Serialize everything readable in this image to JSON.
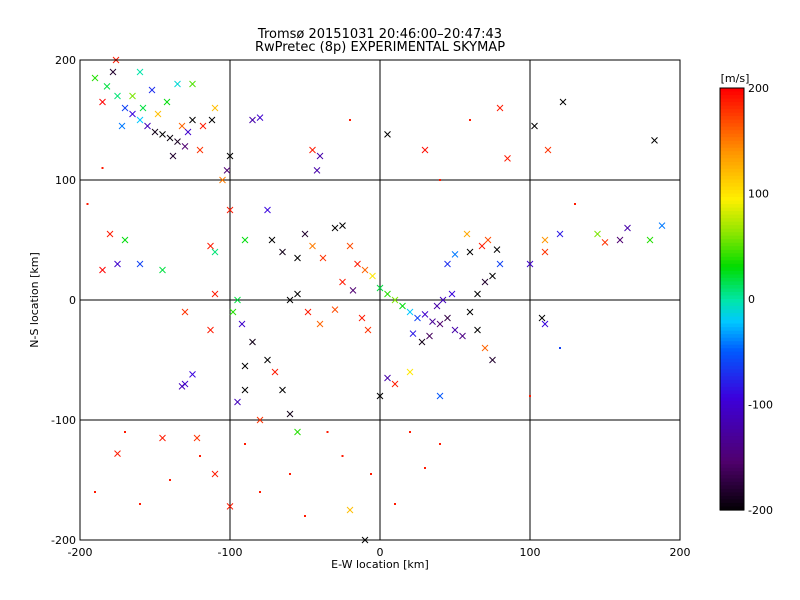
{
  "chart_data": {
    "type": "scatter",
    "title": "Tromsø 20151031 20:46:00–20:47:43",
    "subtitle": "RwPretec (8p) EXPERIMENTAL SKYMAP",
    "xlabel": "E-W location [km]",
    "ylabel": "N-S location [km]",
    "xlim": [
      -200,
      200
    ],
    "ylim": [
      -200,
      200
    ],
    "xticks": [
      "-200",
      "-100",
      "0",
      "100",
      "200"
    ],
    "yticks": [
      "-200",
      "-100",
      "0",
      "100",
      "200"
    ],
    "grid": true,
    "colorbar": {
      "label": "[m/s]",
      "range": [
        -200,
        200
      ],
      "ticks": [
        "200",
        "100",
        "0",
        "-100",
        "-200"
      ]
    },
    "points": [
      {
        "x": -190,
        "y": 185,
        "v": 40,
        "m": "x"
      },
      {
        "x": -182,
        "y": 178,
        "v": 20,
        "m": "x"
      },
      {
        "x": -178,
        "y": 190,
        "v": -180,
        "m": "x"
      },
      {
        "x": -175,
        "y": 170,
        "v": 10,
        "m": "x"
      },
      {
        "x": -170,
        "y": 160,
        "v": -60,
        "m": "x"
      },
      {
        "x": -165,
        "y": 155,
        "v": -90,
        "m": "x"
      },
      {
        "x": -160,
        "y": 150,
        "v": -20,
        "m": "x"
      },
      {
        "x": -155,
        "y": 145,
        "v": -110,
        "m": "x"
      },
      {
        "x": -150,
        "y": 140,
        "v": -190,
        "m": "x"
      },
      {
        "x": -145,
        "y": 138,
        "v": -200,
        "m": "x"
      },
      {
        "x": -140,
        "y": 135,
        "v": -195,
        "m": "x"
      },
      {
        "x": -135,
        "y": 132,
        "v": -185,
        "m": "x"
      },
      {
        "x": -130,
        "y": 128,
        "v": -150,
        "m": "x"
      },
      {
        "x": -128,
        "y": 140,
        "v": -100,
        "m": "x"
      },
      {
        "x": -125,
        "y": 150,
        "v": -200,
        "m": "x"
      },
      {
        "x": -120,
        "y": 125,
        "v": 180,
        "m": "x"
      },
      {
        "x": -118,
        "y": 145,
        "v": 190,
        "m": "x"
      },
      {
        "x": -112,
        "y": 150,
        "v": -200,
        "m": "x"
      },
      {
        "x": -165,
        "y": 170,
        "v": 60,
        "m": "x"
      },
      {
        "x": -172,
        "y": 145,
        "v": -40,
        "m": "x"
      },
      {
        "x": -158,
        "y": 160,
        "v": 20,
        "m": "x"
      },
      {
        "x": -148,
        "y": 155,
        "v": 120,
        "m": "x"
      },
      {
        "x": -138,
        "y": 120,
        "v": -180,
        "m": "x"
      },
      {
        "x": -132,
        "y": 145,
        "v": 160,
        "m": "x"
      },
      {
        "x": -185,
        "y": 165,
        "v": 200,
        "m": "x"
      },
      {
        "x": -176,
        "y": 200,
        "v": 190,
        "m": "x"
      },
      {
        "x": -160,
        "y": 190,
        "v": 0,
        "m": "x"
      },
      {
        "x": -152,
        "y": 175,
        "v": -70,
        "m": "x"
      },
      {
        "x": -142,
        "y": 165,
        "v": 30,
        "m": "x"
      },
      {
        "x": -135,
        "y": 180,
        "v": -10,
        "m": "x"
      },
      {
        "x": -125,
        "y": 180,
        "v": 50,
        "m": "x"
      },
      {
        "x": -110,
        "y": 160,
        "v": 120,
        "m": "x"
      },
      {
        "x": -100,
        "y": 120,
        "v": -200,
        "m": "x"
      },
      {
        "x": -102,
        "y": 108,
        "v": -150,
        "m": "x"
      },
      {
        "x": -85,
        "y": 150,
        "v": -120,
        "m": "x"
      },
      {
        "x": -80,
        "y": 152,
        "v": -100,
        "m": "x"
      },
      {
        "x": -105,
        "y": 100,
        "v": 150,
        "m": "x"
      },
      {
        "x": 5,
        "y": 138,
        "v": -200,
        "m": "x"
      },
      {
        "x": 80,
        "y": 160,
        "v": 190,
        "m": "x"
      },
      {
        "x": 103,
        "y": 145,
        "v": -200,
        "m": "x"
      },
      {
        "x": 122,
        "y": 165,
        "v": -200,
        "m": "x"
      },
      {
        "x": 112,
        "y": 125,
        "v": 180,
        "m": "x"
      },
      {
        "x": 183,
        "y": 133,
        "v": -200,
        "m": "x"
      },
      {
        "x": 30,
        "y": 125,
        "v": 195,
        "m": "x"
      },
      {
        "x": 85,
        "y": 118,
        "v": 190,
        "m": "x"
      },
      {
        "x": -45,
        "y": 125,
        "v": 190,
        "m": "x"
      },
      {
        "x": -40,
        "y": 120,
        "v": -120,
        "m": "x"
      },
      {
        "x": -42,
        "y": 108,
        "v": -120,
        "m": "x"
      },
      {
        "x": -100,
        "y": 75,
        "v": 190,
        "m": "x"
      },
      {
        "x": -90,
        "y": 50,
        "v": 30,
        "m": "x"
      },
      {
        "x": -75,
        "y": 75,
        "v": -90,
        "m": "x"
      },
      {
        "x": -72,
        "y": 50,
        "v": -200,
        "m": "x"
      },
      {
        "x": -65,
        "y": 40,
        "v": -190,
        "m": "x"
      },
      {
        "x": -55,
        "y": 35,
        "v": -200,
        "m": "x"
      },
      {
        "x": -50,
        "y": 55,
        "v": -180,
        "m": "x"
      },
      {
        "x": -45,
        "y": 45,
        "v": 150,
        "m": "x"
      },
      {
        "x": -38,
        "y": 35,
        "v": 180,
        "m": "x"
      },
      {
        "x": -30,
        "y": 60,
        "v": -200,
        "m": "x"
      },
      {
        "x": -25,
        "y": 62,
        "v": -200,
        "m": "x"
      },
      {
        "x": -20,
        "y": 45,
        "v": 170,
        "m": "x"
      },
      {
        "x": -15,
        "y": 30,
        "v": 190,
        "m": "x"
      },
      {
        "x": -10,
        "y": 25,
        "v": 160,
        "m": "x"
      },
      {
        "x": -5,
        "y": 20,
        "v": 100,
        "m": "x"
      },
      {
        "x": -55,
        "y": 5,
        "v": -200,
        "m": "x"
      },
      {
        "x": -60,
        "y": 0,
        "v": -200,
        "m": "x"
      },
      {
        "x": -48,
        "y": -10,
        "v": 190,
        "m": "x"
      },
      {
        "x": -40,
        "y": -20,
        "v": 160,
        "m": "x"
      },
      {
        "x": -30,
        "y": -8,
        "v": 170,
        "m": "x"
      },
      {
        "x": -25,
        "y": 15,
        "v": 190,
        "m": "x"
      },
      {
        "x": -18,
        "y": 8,
        "v": -150,
        "m": "x"
      },
      {
        "x": -12,
        "y": -15,
        "v": 190,
        "m": "x"
      },
      {
        "x": -8,
        "y": -25,
        "v": 180,
        "m": "x"
      },
      {
        "x": 0,
        "y": 10,
        "v": 20,
        "m": "x"
      },
      {
        "x": 5,
        "y": 5,
        "v": 40,
        "m": "x"
      },
      {
        "x": 10,
        "y": 0,
        "v": 60,
        "m": "x"
      },
      {
        "x": 15,
        "y": -5,
        "v": 30,
        "m": "x"
      },
      {
        "x": 20,
        "y": -10,
        "v": -20,
        "m": "x"
      },
      {
        "x": 25,
        "y": -15,
        "v": -60,
        "m": "x"
      },
      {
        "x": 30,
        "y": -12,
        "v": -100,
        "m": "x"
      },
      {
        "x": 35,
        "y": -18,
        "v": -130,
        "m": "x"
      },
      {
        "x": 40,
        "y": -20,
        "v": -150,
        "m": "x"
      },
      {
        "x": 45,
        "y": -15,
        "v": -170,
        "m": "x"
      },
      {
        "x": 50,
        "y": -25,
        "v": -120,
        "m": "x"
      },
      {
        "x": 55,
        "y": -30,
        "v": -140,
        "m": "x"
      },
      {
        "x": 42,
        "y": 0,
        "v": -110,
        "m": "x"
      },
      {
        "x": 48,
        "y": 5,
        "v": -90,
        "m": "x"
      },
      {
        "x": 38,
        "y": -5,
        "v": -120,
        "m": "x"
      },
      {
        "x": 33,
        "y": -30,
        "v": -160,
        "m": "x"
      },
      {
        "x": 28,
        "y": -35,
        "v": -190,
        "m": "x"
      },
      {
        "x": 22,
        "y": -28,
        "v": -80,
        "m": "x"
      },
      {
        "x": 60,
        "y": -10,
        "v": -200,
        "m": "x"
      },
      {
        "x": 65,
        "y": 5,
        "v": -200,
        "m": "x"
      },
      {
        "x": 70,
        "y": 15,
        "v": -180,
        "m": "x"
      },
      {
        "x": 75,
        "y": 20,
        "v": -200,
        "m": "x"
      },
      {
        "x": 80,
        "y": 30,
        "v": -60,
        "m": "x"
      },
      {
        "x": 60,
        "y": 40,
        "v": -200,
        "m": "x"
      },
      {
        "x": 68,
        "y": 45,
        "v": 190,
        "m": "x"
      },
      {
        "x": 72,
        "y": 50,
        "v": 170,
        "m": "x"
      },
      {
        "x": 78,
        "y": 42,
        "v": -200,
        "m": "x"
      },
      {
        "x": 58,
        "y": 55,
        "v": 130,
        "m": "x"
      },
      {
        "x": 50,
        "y": 38,
        "v": -40,
        "m": "x"
      },
      {
        "x": 45,
        "y": 30,
        "v": -70,
        "m": "x"
      },
      {
        "x": 100,
        "y": 30,
        "v": -100,
        "m": "x"
      },
      {
        "x": 108,
        "y": -15,
        "v": -200,
        "m": "x"
      },
      {
        "x": 110,
        "y": -20,
        "v": -90,
        "m": "x"
      },
      {
        "x": 65,
        "y": -25,
        "v": -200,
        "m": "x"
      },
      {
        "x": 70,
        "y": -40,
        "v": 160,
        "m": "x"
      },
      {
        "x": 75,
        "y": -50,
        "v": -180,
        "m": "x"
      },
      {
        "x": -85,
        "y": -35,
        "v": -190,
        "m": "x"
      },
      {
        "x": -75,
        "y": -50,
        "v": -200,
        "m": "x"
      },
      {
        "x": -70,
        "y": -60,
        "v": 190,
        "m": "x"
      },
      {
        "x": -65,
        "y": -75,
        "v": -200,
        "m": "x"
      },
      {
        "x": -60,
        "y": -95,
        "v": -190,
        "m": "x"
      },
      {
        "x": -55,
        "y": -110,
        "v": 40,
        "m": "x"
      },
      {
        "x": -90,
        "y": -75,
        "v": -200,
        "m": "x"
      },
      {
        "x": -90,
        "y": -55,
        "v": -200,
        "m": "x"
      },
      {
        "x": -95,
        "y": -85,
        "v": -110,
        "m": "x"
      },
      {
        "x": -130,
        "y": -70,
        "v": -100,
        "m": "x"
      },
      {
        "x": -132,
        "y": -72,
        "v": -110,
        "m": "x"
      },
      {
        "x": -125,
        "y": -62,
        "v": -90,
        "m": "x"
      },
      {
        "x": -145,
        "y": -115,
        "v": 190,
        "m": "x"
      },
      {
        "x": -110,
        "y": -145,
        "v": 190,
        "m": "x"
      },
      {
        "x": -100,
        "y": -172,
        "v": 190,
        "m": "x"
      },
      {
        "x": -175,
        "y": -128,
        "v": 190,
        "m": "x"
      },
      {
        "x": -122,
        "y": -115,
        "v": 180,
        "m": "x"
      },
      {
        "x": -80,
        "y": -100,
        "v": 180,
        "m": "x"
      },
      {
        "x": 0,
        "y": -80,
        "v": -200,
        "m": "x"
      },
      {
        "x": 5,
        "y": -65,
        "v": -120,
        "m": "x"
      },
      {
        "x": 10,
        "y": -70,
        "v": 190,
        "m": "x"
      },
      {
        "x": 20,
        "y": -60,
        "v": 100,
        "m": "x"
      },
      {
        "x": 40,
        "y": -80,
        "v": -50,
        "m": "x"
      },
      {
        "x": -20,
        "y": -175,
        "v": 120,
        "m": "x"
      },
      {
        "x": -10,
        "y": -200,
        "v": -200,
        "m": "x"
      },
      {
        "x": -180,
        "y": 55,
        "v": 190,
        "m": "x"
      },
      {
        "x": -185,
        "y": 25,
        "v": 200,
        "m": "x"
      },
      {
        "x": -170,
        "y": 50,
        "v": 30,
        "m": "x"
      },
      {
        "x": -175,
        "y": 30,
        "v": -100,
        "m": "x"
      },
      {
        "x": -160,
        "y": 30,
        "v": -60,
        "m": "x"
      },
      {
        "x": -145,
        "y": 25,
        "v": 20,
        "m": "x"
      },
      {
        "x": -130,
        "y": -10,
        "v": 180,
        "m": "x"
      },
      {
        "x": -113,
        "y": 45,
        "v": 190,
        "m": "x"
      },
      {
        "x": -110,
        "y": 5,
        "v": 190,
        "m": "x"
      },
      {
        "x": -95,
        "y": 0,
        "v": 20,
        "m": "x"
      },
      {
        "x": -110,
        "y": 40,
        "v": 10,
        "m": "x"
      },
      {
        "x": -113,
        "y": -25,
        "v": 190,
        "m": "x"
      },
      {
        "x": -92,
        "y": -20,
        "v": -100,
        "m": "x"
      },
      {
        "x": -98,
        "y": -10,
        "v": 40,
        "m": "x"
      },
      {
        "x": 145,
        "y": 55,
        "v": 60,
        "m": "x"
      },
      {
        "x": 150,
        "y": 48,
        "v": 180,
        "m": "x"
      },
      {
        "x": 160,
        "y": 50,
        "v": -150,
        "m": "x"
      },
      {
        "x": 165,
        "y": 60,
        "v": -120,
        "m": "x"
      },
      {
        "x": 180,
        "y": 50,
        "v": 40,
        "m": "x"
      },
      {
        "x": 188,
        "y": 62,
        "v": -40,
        "m": "x"
      },
      {
        "x": 110,
        "y": 40,
        "v": 180,
        "m": "x"
      },
      {
        "x": 110,
        "y": 50,
        "v": 140,
        "m": "x"
      },
      {
        "x": 120,
        "y": 55,
        "v": -80,
        "m": "x"
      },
      {
        "x": -6,
        "y": -145,
        "v": 190,
        "m": "d"
      },
      {
        "x": -25,
        "y": -130,
        "v": 190,
        "m": "d"
      },
      {
        "x": -60,
        "y": -145,
        "v": 190,
        "m": "d"
      },
      {
        "x": -80,
        "y": -160,
        "v": 190,
        "m": "d"
      },
      {
        "x": -35,
        "y": -110,
        "v": 190,
        "m": "d"
      },
      {
        "x": 20,
        "y": -110,
        "v": 190,
        "m": "d"
      },
      {
        "x": 30,
        "y": -140,
        "v": 190,
        "m": "d"
      },
      {
        "x": -140,
        "y": -150,
        "v": 190,
        "m": "d"
      },
      {
        "x": -160,
        "y": -170,
        "v": 190,
        "m": "d"
      },
      {
        "x": -120,
        "y": -130,
        "v": 190,
        "m": "d"
      },
      {
        "x": -90,
        "y": -120,
        "v": 190,
        "m": "d"
      },
      {
        "x": 10,
        "y": -170,
        "v": 190,
        "m": "d"
      },
      {
        "x": 40,
        "y": -120,
        "v": 190,
        "m": "d"
      },
      {
        "x": -50,
        "y": -180,
        "v": 190,
        "m": "d"
      },
      {
        "x": -170,
        "y": -110,
        "v": 190,
        "m": "d"
      },
      {
        "x": -190,
        "y": -160,
        "v": 190,
        "m": "d"
      },
      {
        "x": -195,
        "y": 80,
        "v": 190,
        "m": "d"
      },
      {
        "x": -185,
        "y": 110,
        "v": 190,
        "m": "d"
      },
      {
        "x": 100,
        "y": -80,
        "v": 190,
        "m": "d"
      },
      {
        "x": 120,
        "y": -40,
        "v": -60,
        "m": "d"
      },
      {
        "x": 130,
        "y": 80,
        "v": 190,
        "m": "d"
      },
      {
        "x": 60,
        "y": 150,
        "v": 190,
        "m": "d"
      },
      {
        "x": -20,
        "y": 150,
        "v": 190,
        "m": "d"
      },
      {
        "x": 40,
        "y": 100,
        "v": 190,
        "m": "d"
      }
    ]
  }
}
